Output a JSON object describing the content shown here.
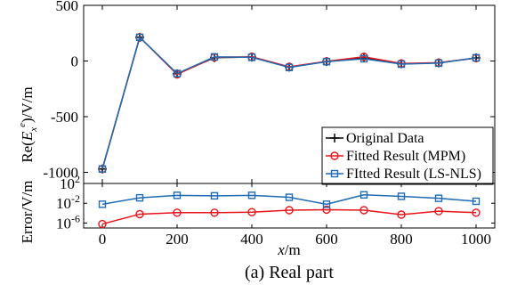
{
  "chart_data": [
    {
      "type": "line",
      "panel": "top",
      "ylabel": "Re(E_x^e)/V/m",
      "ylim": [
        -1100,
        500
      ],
      "yticks": [
        500,
        0,
        -500,
        -1000
      ],
      "xlim": [
        -50,
        1050
      ],
      "x": [
        0,
        100,
        200,
        300,
        400,
        500,
        600,
        700,
        800,
        900,
        1000
      ],
      "series": [
        {
          "name": "Original Data",
          "color": "#000000",
          "marker": "plus",
          "values": [
            -970,
            213,
            -115,
            30,
            35,
            -55,
            -5,
            32,
            -25,
            -17,
            28
          ]
        },
        {
          "name": "Fitted Result (MPM)",
          "color": "#e8141b",
          "marker": "circle",
          "values": [
            -970,
            213,
            -120,
            33,
            38,
            -52,
            -3,
            38,
            -22,
            -15,
            26
          ]
        },
        {
          "name": "FItted Result (LS-NLS)",
          "color": "#1f6bb4",
          "marker": "square",
          "values": [
            -970,
            213,
            -112,
            37,
            33,
            -58,
            -6,
            20,
            -28,
            -19,
            29
          ]
        }
      ],
      "legend": {
        "position": "bottom-right",
        "labels": [
          "Original Data",
          "Fitted Result (MPM)",
          "FItted Result (LS-NLS)"
        ]
      }
    },
    {
      "type": "line",
      "panel": "bottom",
      "ylabel": "Error/V/m",
      "yscale": "log",
      "ylim_log10": [
        -7,
        2
      ],
      "ytick_labels": [
        "10^2",
        "10^-2",
        "10^-6"
      ],
      "xlabel": "x/m",
      "xticks": [
        0,
        200,
        400,
        600,
        800,
        1000
      ],
      "x": [
        0,
        100,
        200,
        300,
        400,
        500,
        600,
        700,
        800,
        900,
        1000
      ],
      "series": [
        {
          "name": "Fitted Result (MPM)",
          "color": "#e8141b",
          "marker": "circle",
          "log10_values": [
            -6.2,
            -4.2,
            -3.9,
            -3.9,
            -3.8,
            -3.4,
            -3.3,
            -3.4,
            -4.3,
            -3.6,
            -3.9
          ]
        },
        {
          "name": "FItted Result (LS-NLS)",
          "color": "#1f6bb4",
          "marker": "square",
          "log10_values": [
            -2.2,
            -0.9,
            -0.4,
            -0.5,
            -0.4,
            -0.8,
            -2.2,
            -0.3,
            -0.6,
            -1.0,
            -1.6
          ]
        }
      ]
    }
  ],
  "caption": "(a) Real part",
  "colors": {
    "original": "#000000",
    "mpm": "#e8141b",
    "lsnls": "#1f6bb4"
  }
}
